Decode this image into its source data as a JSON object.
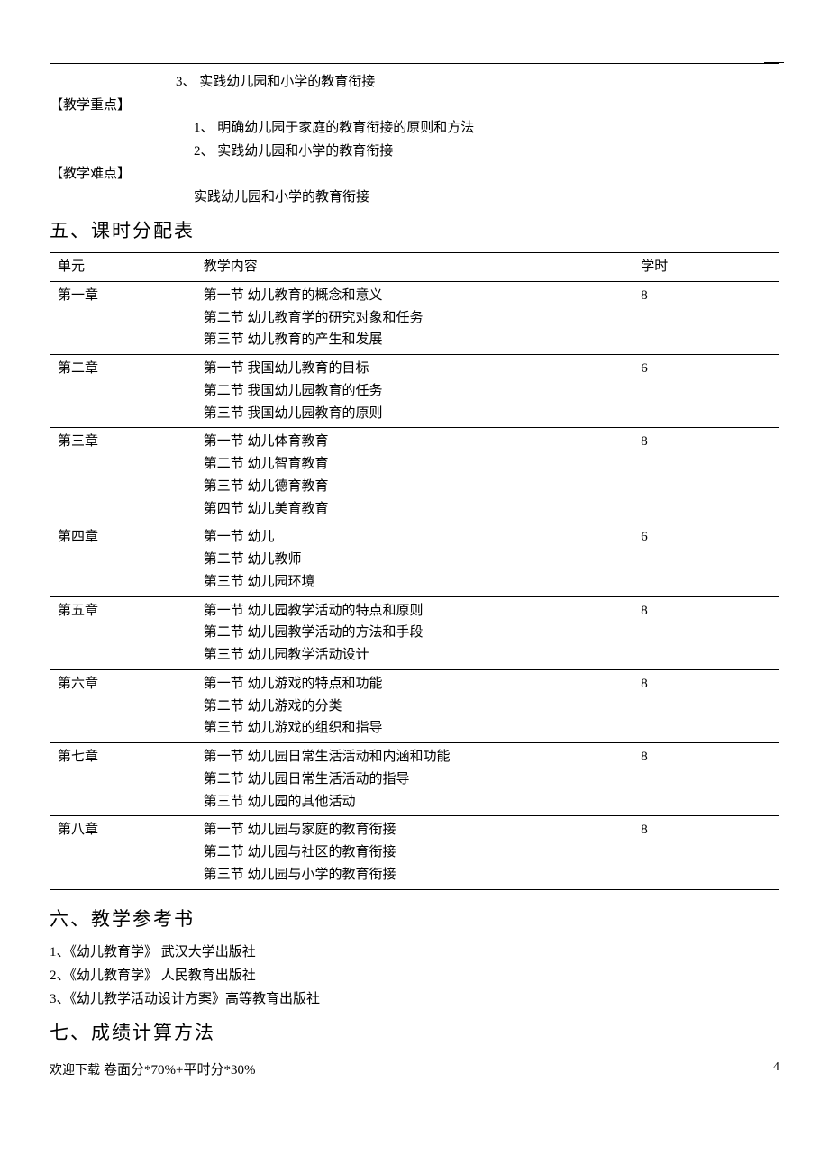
{
  "header": {
    "list_item_3": "3、 实践幼儿园和小学的教育衔接",
    "key_points_label": "【教学重点】",
    "kp_item_1": "1、 明确幼儿园于家庭的教育衔接的原则和方法",
    "kp_item_2": "2、 实践幼儿园和小学的教育衔接",
    "difficulty_label": "【教学难点】",
    "diff_item": "实践幼儿园和小学的教育衔接"
  },
  "section5": {
    "heading": "五、课时分配表"
  },
  "table": {
    "head": {
      "unit": "单元",
      "content": "教学内容",
      "hours": "学时"
    },
    "rows": [
      {
        "unit": "第一章",
        "lines": [
          "第一节  幼儿教育的概念和意义",
          "第二节  幼儿教育学的研究对象和任务",
          "第三节  幼儿教育的产生和发展"
        ],
        "hours": "8"
      },
      {
        "unit": "第二章",
        "lines": [
          "第一节  我国幼儿教育的目标",
          "第二节  我国幼儿园教育的任务",
          "第三节  我国幼儿园教育的原则"
        ],
        "hours": "6"
      },
      {
        "unit": "第三章",
        "lines": [
          "第一节  幼儿体育教育",
          "第二节  幼儿智育教育",
          "第三节  幼儿德育教育",
          "第四节  幼儿美育教育"
        ],
        "hours": "8"
      },
      {
        "unit": "第四章",
        "lines": [
          "第一节  幼儿",
          "第二节  幼儿教师",
          "第三节  幼儿园环境"
        ],
        "hours": "6"
      },
      {
        "unit": "第五章",
        "lines": [
          "第一节  幼儿园教学活动的特点和原则",
          "第二节  幼儿园教学活动的方法和手段",
          "第三节  幼儿园教学活动设计"
        ],
        "hours": "8"
      },
      {
        "unit": "第六章",
        "lines": [
          "第一节  幼儿游戏的特点和功能",
          "第二节  幼儿游戏的分类",
          "第三节  幼儿游戏的组织和指导"
        ],
        "hours": "8"
      },
      {
        "unit": "第七章",
        "lines": [
          "第一节  幼儿园日常生活活动和内涵和功能",
          "第二节  幼儿园日常生活活动的指导",
          "第三节  幼儿园的其他活动"
        ],
        "hours": "8"
      },
      {
        "unit": "第八章",
        "lines": [
          "第一节  幼儿园与家庭的教育衔接",
          "第二节  幼儿园与社区的教育衔接",
          "第三节  幼儿园与小学的教育衔接"
        ],
        "hours": "8"
      }
    ]
  },
  "section6": {
    "heading": "六、教学参考书",
    "items": [
      "1、《幼儿教育学》  武汉大学出版社",
      "2、《幼儿教育学》  人民教育出版社",
      "3、《幼儿教学活动设计方案》高等教育出版社"
    ]
  },
  "section7": {
    "heading": "七、成绩计算方法",
    "formula": "卷面分*70%+平时分*30%"
  },
  "footer": {
    "left": "欢迎下载",
    "page": "4"
  }
}
